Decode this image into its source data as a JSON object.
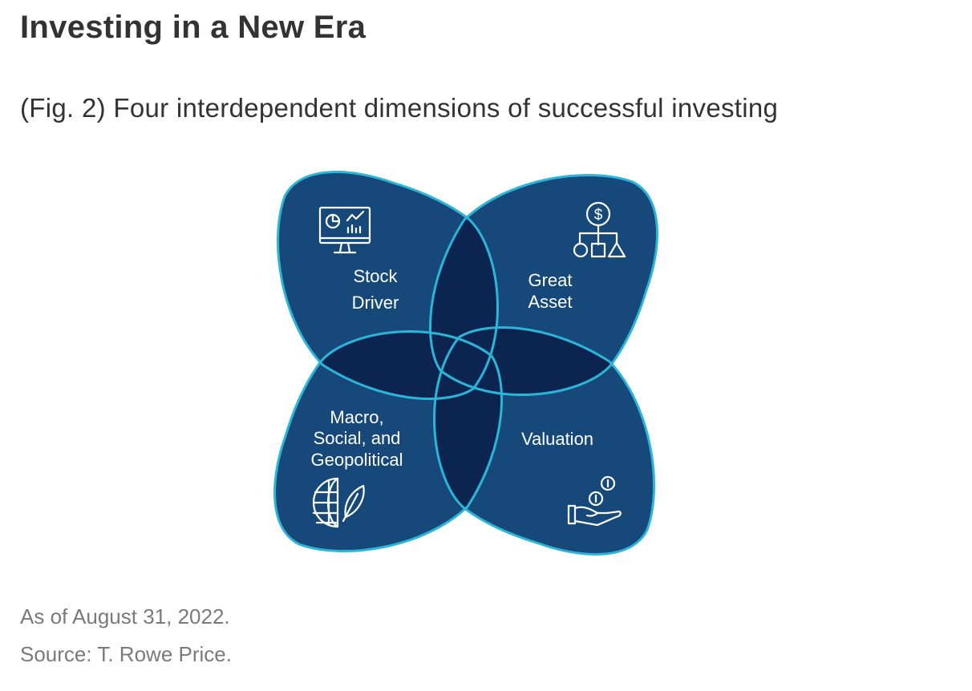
{
  "title": "Investing in a New Era",
  "subtitle": "(Fig. 2) Four interdependent dimensions of successful investing",
  "diagram": {
    "colors": {
      "petal": "#16497a",
      "overlap": "#0c2550",
      "outline": "#2bb5d9",
      "text": "#ffffff"
    },
    "petals": [
      {
        "lines": [
          "Stock",
          "Driver"
        ],
        "icon": "computer-monitor-chart-icon"
      },
      {
        "lines": [
          "Great",
          "Asset"
        ],
        "icon": "dollar-hierarchy-icon"
      },
      {
        "lines": [
          "Valuation"
        ],
        "icon": "hand-coins-icon"
      },
      {
        "lines": [
          "Macro,",
          "Social, and",
          "Geopolitical"
        ],
        "icon": "globe-leaf-icon"
      }
    ]
  },
  "footer": {
    "date_note": "As of August 31, 2022.",
    "source": "Source: T. Rowe Price."
  }
}
